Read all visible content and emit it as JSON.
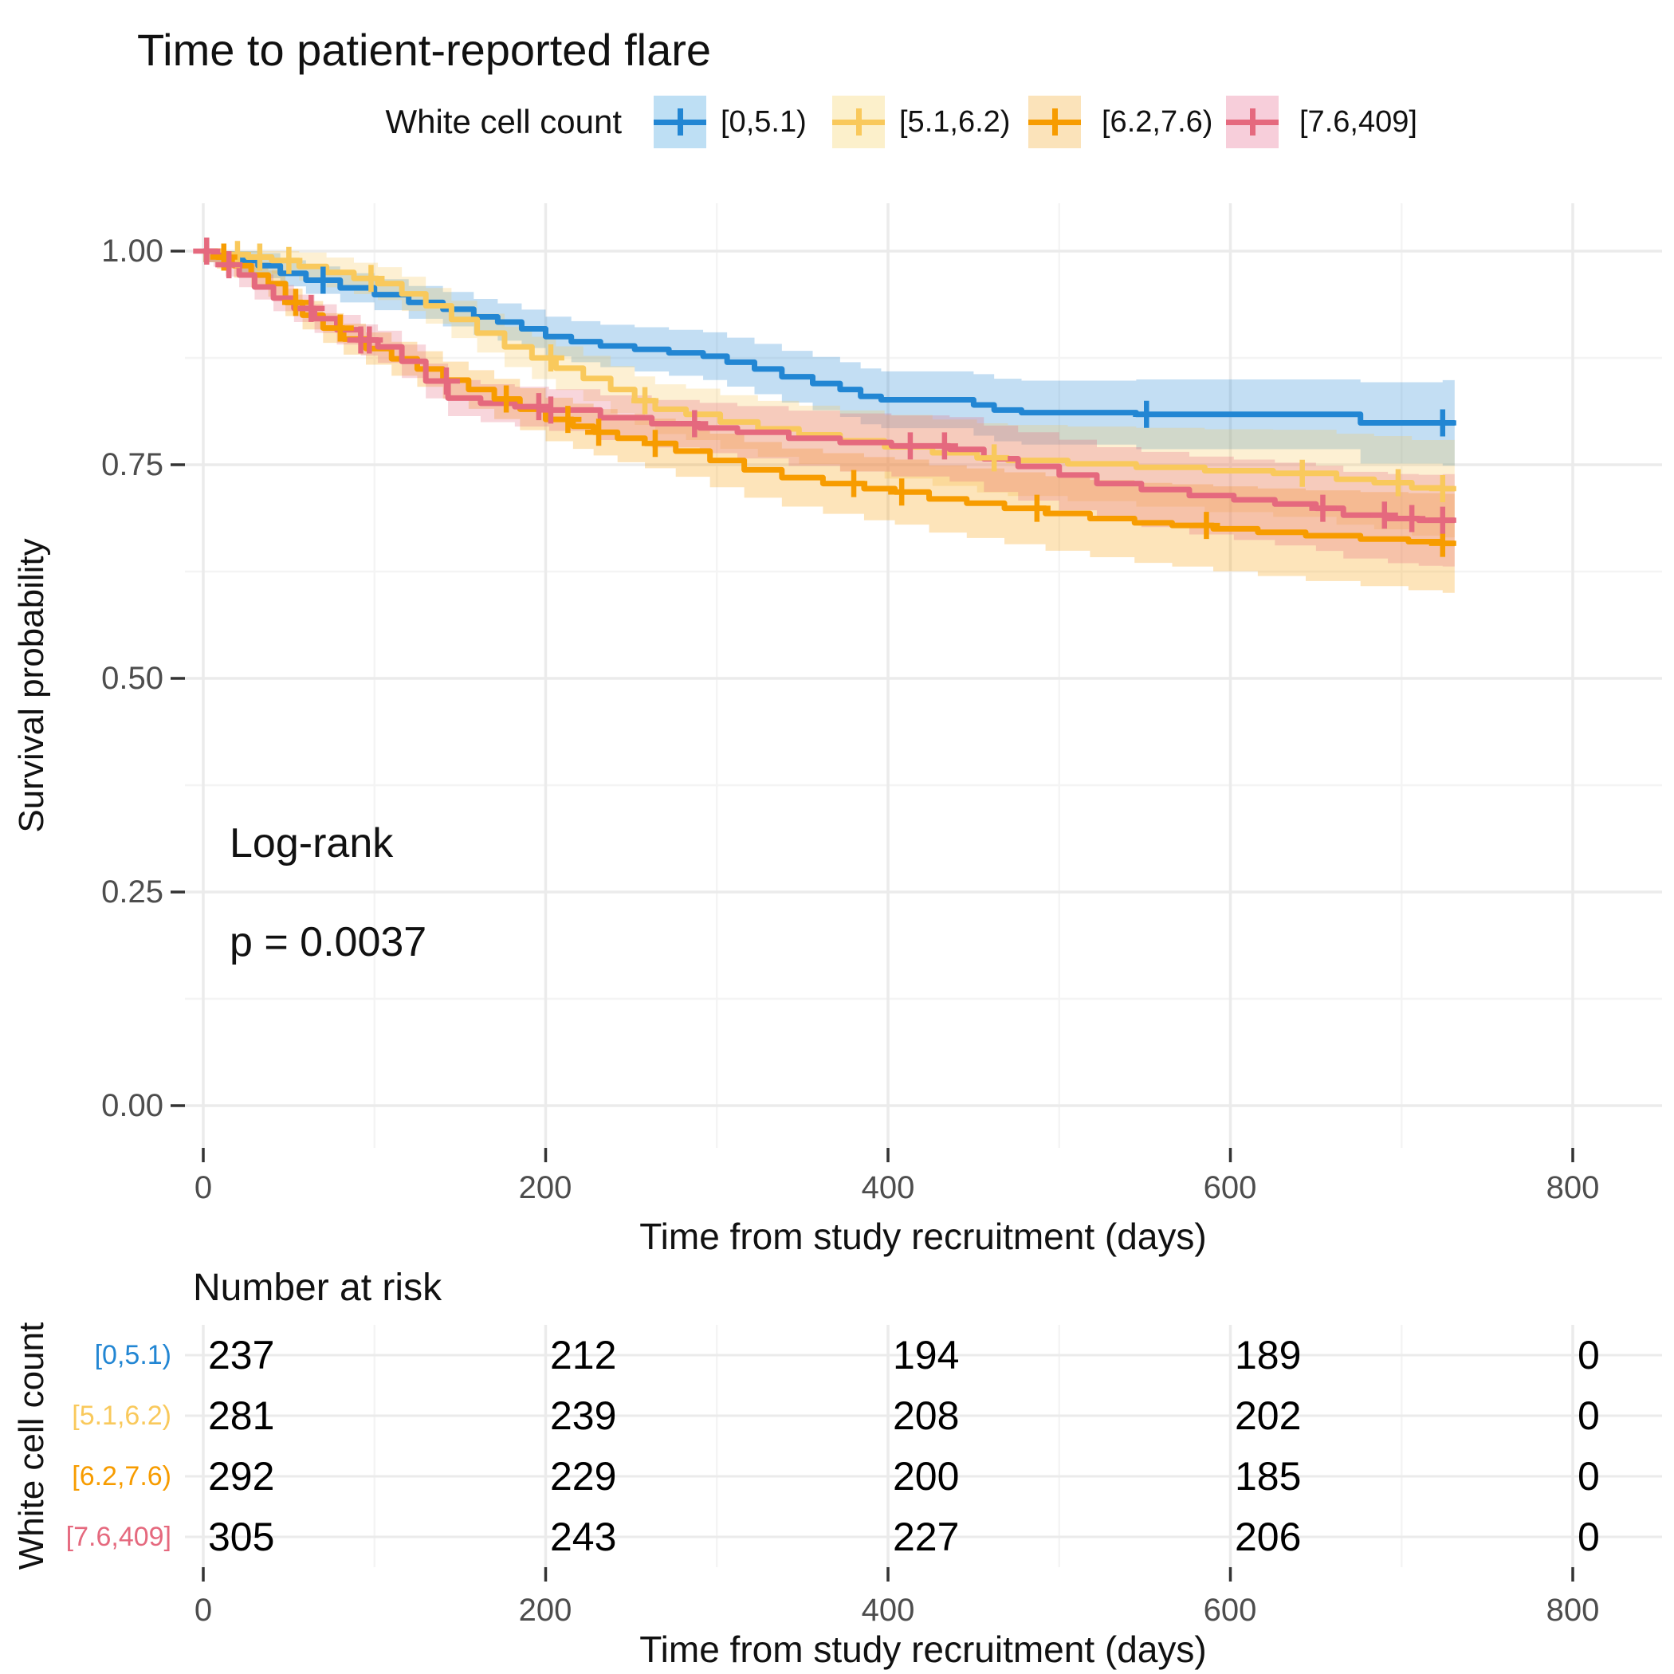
{
  "title": "Time to patient-reported flare",
  "legend": {
    "title": "White cell count",
    "items": [
      {
        "label": "[0,5.1)"
      },
      {
        "label": "[5.1,6.2)"
      },
      {
        "label": "[6.2,7.6)"
      },
      {
        "label": "[7.6,409]"
      }
    ]
  },
  "annotations": {
    "test_name": "Log-rank",
    "p_value": "p = 0.0037"
  },
  "axes": {
    "y": {
      "label": "Survival probability",
      "ticks": [
        "1.00",
        "0.75",
        "0.50",
        "0.25",
        "0.00"
      ]
    },
    "x": {
      "label": "Time from study recruitment (days)",
      "ticks": [
        "0",
        "200",
        "400",
        "600",
        "800"
      ]
    }
  },
  "risk_table": {
    "title": "Number at risk",
    "ylabel": "White cell count",
    "xlabel": "Time from study recruitment (days)",
    "x_ticks": [
      "0",
      "200",
      "400",
      "600",
      "800"
    ],
    "rows": [
      {
        "label": "[0,5.1)",
        "counts": [
          "237",
          "212",
          "194",
          "189",
          "0"
        ]
      },
      {
        "label": "[5.1,6.2)",
        "counts": [
          "281",
          "239",
          "208",
          "202",
          "0"
        ]
      },
      {
        "label": "[6.2,7.6)",
        "counts": [
          "292",
          "229",
          "200",
          "185",
          "0"
        ]
      },
      {
        "label": "[7.6,409]",
        "counts": [
          "305",
          "243",
          "227",
          "206",
          "0"
        ]
      }
    ]
  },
  "chart_data": {
    "type": "line",
    "subtype": "kaplan-meier-step",
    "title": "Time to patient-reported flare",
    "xlabel": "Time from study recruitment (days)",
    "ylabel": "Survival probability",
    "xlim": [
      0,
      800
    ],
    "ylim": [
      0,
      1
    ],
    "x_ticks": [
      0,
      200,
      400,
      600,
      800
    ],
    "y_ticks": [
      0,
      0.25,
      0.5,
      0.75,
      1
    ],
    "grid": "major+minor",
    "legend_position": "top",
    "logrank_p": "0.0037",
    "series": [
      {
        "name": "[0,5.1)",
        "color": "#2286D3",
        "band": "#BEDFF4",
        "t_end": 731,
        "ci": [
          0.013,
          0.05
        ],
        "points": [
          [
            0,
            1.0
          ],
          [
            10,
            0.996
          ],
          [
            20,
            0.989
          ],
          [
            32,
            0.983
          ],
          [
            45,
            0.974
          ],
          [
            60,
            0.966
          ],
          [
            80,
            0.957
          ],
          [
            100,
            0.949
          ],
          [
            120,
            0.94
          ],
          [
            140,
            0.932
          ],
          [
            158,
            0.923
          ],
          [
            172,
            0.917
          ],
          [
            186,
            0.909
          ],
          [
            200,
            0.9
          ],
          [
            215,
            0.894
          ],
          [
            232,
            0.889
          ],
          [
            252,
            0.885
          ],
          [
            272,
            0.881
          ],
          [
            292,
            0.877
          ],
          [
            306,
            0.87
          ],
          [
            322,
            0.862
          ],
          [
            338,
            0.853
          ],
          [
            356,
            0.845
          ],
          [
            372,
            0.838
          ],
          [
            384,
            0.83
          ],
          [
            396,
            0.826
          ],
          [
            450,
            0.82
          ],
          [
            462,
            0.814
          ],
          [
            478,
            0.811
          ],
          [
            545,
            0.809
          ],
          [
            676,
            0.799
          ],
          [
            724,
            0.799
          ]
        ],
        "censor_times": [
          70,
          551,
          724
        ]
      },
      {
        "name": "[5.1,6.2)",
        "color": "#F9C95C",
        "band": "#FCF0CB",
        "t_end": 731,
        "ci": [
          0.013,
          0.057
        ],
        "points": [
          [
            0,
            1.0
          ],
          [
            12,
            0.996
          ],
          [
            26,
            0.993
          ],
          [
            40,
            0.989
          ],
          [
            56,
            0.982
          ],
          [
            72,
            0.975
          ],
          [
            88,
            0.968
          ],
          [
            102,
            0.962
          ],
          [
            116,
            0.95
          ],
          [
            130,
            0.936
          ],
          [
            145,
            0.92
          ],
          [
            160,
            0.904
          ],
          [
            176,
            0.888
          ],
          [
            192,
            0.875
          ],
          [
            206,
            0.863
          ],
          [
            222,
            0.851
          ],
          [
            238,
            0.838
          ],
          [
            252,
            0.825
          ],
          [
            264,
            0.815
          ],
          [
            282,
            0.809
          ],
          [
            302,
            0.8
          ],
          [
            324,
            0.792
          ],
          [
            348,
            0.785
          ],
          [
            372,
            0.778
          ],
          [
            398,
            0.771
          ],
          [
            426,
            0.764
          ],
          [
            452,
            0.758
          ],
          [
            470,
            0.755
          ],
          [
            505,
            0.751
          ],
          [
            545,
            0.747
          ],
          [
            585,
            0.743
          ],
          [
            625,
            0.74
          ],
          [
            662,
            0.733
          ],
          [
            684,
            0.729
          ],
          [
            706,
            0.723
          ],
          [
            724,
            0.722
          ]
        ],
        "censor_times": [
          20,
          33,
          50,
          98,
          203,
          258,
          462,
          642,
          698,
          724
        ]
      },
      {
        "name": "[6.2,7.6)",
        "color": "#F79C00",
        "band": "#FBE3BA",
        "t_end": 731,
        "ci": [
          0.013,
          0.058
        ],
        "points": [
          [
            0,
            1.0
          ],
          [
            8,
            0.993
          ],
          [
            18,
            0.983
          ],
          [
            28,
            0.972
          ],
          [
            38,
            0.962
          ],
          [
            48,
            0.94
          ],
          [
            58,
            0.925
          ],
          [
            70,
            0.91
          ],
          [
            82,
            0.897
          ],
          [
            95,
            0.886
          ],
          [
            110,
            0.874
          ],
          [
            125,
            0.862
          ],
          [
            140,
            0.849
          ],
          [
            155,
            0.838
          ],
          [
            170,
            0.827
          ],
          [
            185,
            0.815
          ],
          [
            200,
            0.803
          ],
          [
            216,
            0.795
          ],
          [
            228,
            0.788
          ],
          [
            242,
            0.781
          ],
          [
            258,
            0.775
          ],
          [
            276,
            0.766
          ],
          [
            296,
            0.755
          ],
          [
            316,
            0.744
          ],
          [
            338,
            0.735
          ],
          [
            362,
            0.728
          ],
          [
            386,
            0.722
          ],
          [
            404,
            0.718
          ],
          [
            424,
            0.71
          ],
          [
            446,
            0.705
          ],
          [
            468,
            0.699
          ],
          [
            492,
            0.693
          ],
          [
            518,
            0.687
          ],
          [
            544,
            0.682
          ],
          [
            566,
            0.679
          ],
          [
            590,
            0.675
          ],
          [
            616,
            0.671
          ],
          [
            644,
            0.667
          ],
          [
            676,
            0.663
          ],
          [
            704,
            0.66
          ],
          [
            724,
            0.658
          ]
        ],
        "censor_times": [
          12,
          54,
          80,
          177,
          213,
          231,
          264,
          380,
          408,
          487,
          586,
          724
        ]
      },
      {
        "name": "[7.6,409]",
        "color": "#E5697E",
        "band": "#F7CEDA",
        "t_end": 731,
        "ci": [
          0.013,
          0.054
        ],
        "points": [
          [
            0,
            1.0
          ],
          [
            6,
            0.995
          ],
          [
            13,
            0.984
          ],
          [
            21,
            0.972
          ],
          [
            30,
            0.958
          ],
          [
            41,
            0.945
          ],
          [
            53,
            0.933
          ],
          [
            65,
            0.921
          ],
          [
            78,
            0.908
          ],
          [
            92,
            0.896
          ],
          [
            102,
            0.888
          ],
          [
            116,
            0.871
          ],
          [
            130,
            0.848
          ],
          [
            143,
            0.828
          ],
          [
            162,
            0.822
          ],
          [
            182,
            0.818
          ],
          [
            202,
            0.814
          ],
          [
            232,
            0.805
          ],
          [
            262,
            0.798
          ],
          [
            290,
            0.793
          ],
          [
            312,
            0.788
          ],
          [
            342,
            0.781
          ],
          [
            372,
            0.776
          ],
          [
            402,
            0.772
          ],
          [
            436,
            0.768
          ],
          [
            456,
            0.757
          ],
          [
            476,
            0.748
          ],
          [
            500,
            0.738
          ],
          [
            522,
            0.728
          ],
          [
            548,
            0.721
          ],
          [
            576,
            0.714
          ],
          [
            602,
            0.709
          ],
          [
            626,
            0.704
          ],
          [
            650,
            0.699
          ],
          [
            666,
            0.691
          ],
          [
            692,
            0.687
          ],
          [
            710,
            0.685
          ],
          [
            724,
            0.685
          ]
        ],
        "censor_times": [
          2,
          15,
          63,
          92,
          97,
          142,
          196,
          203,
          287,
          413,
          433,
          654,
          690,
          706,
          724
        ]
      }
    ]
  }
}
